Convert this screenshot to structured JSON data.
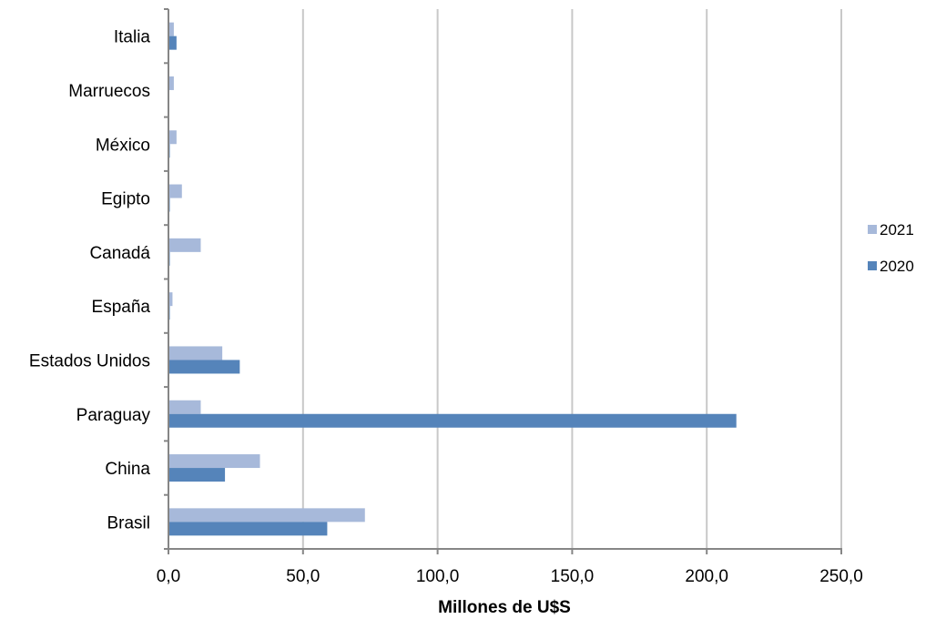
{
  "chart_data": {
    "type": "bar",
    "orientation": "horizontal",
    "categories": [
      "Brasil",
      "China",
      "Paraguay",
      "Estados Unidos",
      "España",
      "Canadá",
      "Egipto",
      "México",
      "Marruecos",
      "Italia"
    ],
    "series": [
      {
        "name": "2021",
        "color": "#A7B9DA",
        "values": [
          73.0,
          34.0,
          12.0,
          20.0,
          1.5,
          12.0,
          5.0,
          3.0,
          2.0,
          2.0
        ]
      },
      {
        "name": "2020",
        "color": "#5584BA",
        "values": [
          59.0,
          21.0,
          211.0,
          26.5,
          0.5,
          0.5,
          0.5,
          0.5,
          0.0,
          3.0
        ]
      }
    ],
    "xlabel": "Millones de U$S",
    "xlim": [
      0,
      250
    ],
    "xticks": [
      0,
      50,
      100,
      150,
      200,
      250
    ],
    "xtick_labels": [
      "0,0",
      "50,0",
      "100,0",
      "150,0",
      "200,0",
      "250,0"
    ],
    "grid": "vertical",
    "legend_position": "right"
  }
}
